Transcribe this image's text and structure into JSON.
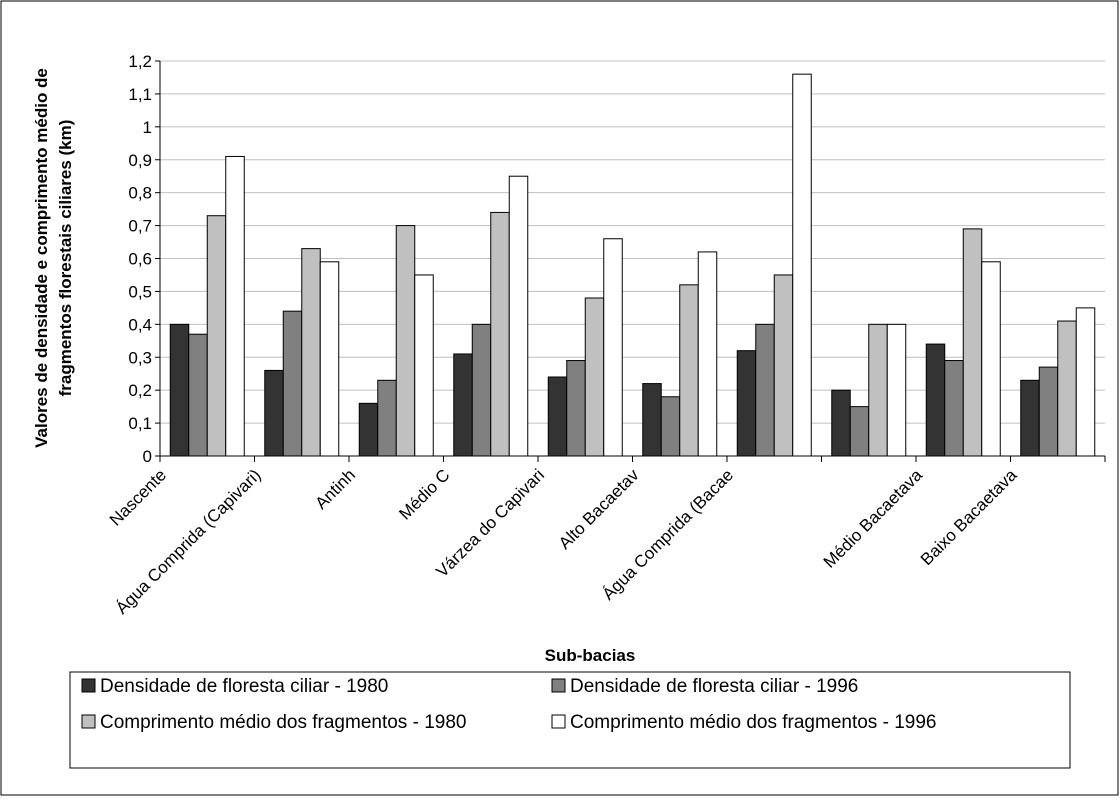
{
  "chart_data": {
    "type": "bar",
    "xlabel": "Sub-bacias",
    "ylabel": [
      "Valores de densidade e comprimento médio de",
      "fragmentos florestais ciliares (km)"
    ],
    "categories": [
      "Nascente",
      "Água Comprida (Capivari)",
      "Antinh",
      "Médio C",
      "Várzea do Capivari",
      "Alto Bacaetav",
      "Água Comprida (Bacae",
      null,
      "Médio Bacaetava",
      "Baixo Bacaetava"
    ],
    "series": [
      {
        "name": "Densidade de floresta ciliar - 1980",
        "color": "#333333",
        "values": [
          0.4,
          0.26,
          0.16,
          0.31,
          0.24,
          0.22,
          0.32,
          0.2,
          0.34,
          0.23
        ]
      },
      {
        "name": "Densidade de floresta ciliar - 1996",
        "color": "#808080",
        "values": [
          0.37,
          0.44,
          0.23,
          0.4,
          0.29,
          0.18,
          0.4,
          0.15,
          0.29,
          0.27
        ]
      },
      {
        "name": "Comprimento médio dos fragmentos - 1980",
        "color": "#c0c0c0",
        "values": [
          0.73,
          0.63,
          0.7,
          0.74,
          0.48,
          0.52,
          0.55,
          0.4,
          0.69,
          0.41
        ]
      },
      {
        "name": "Comprimento médio dos fragmentos - 1996",
        "color": "#ffffff",
        "values": [
          0.91,
          0.59,
          0.55,
          0.85,
          0.66,
          0.62,
          1.16,
          0.4,
          0.59,
          0.45
        ]
      }
    ],
    "ylim": [
      0,
      1.2
    ],
    "yticks": [
      0,
      {
        "value": 0.1,
        "label": "0,1"
      },
      {
        "value": 0.2,
        "label": "0,2"
      },
      {
        "value": 0.3,
        "label": "0,3"
      },
      {
        "value": 0.4,
        "label": "0,4"
      },
      {
        "value": 0.5,
        "label": "0,5"
      },
      {
        "value": 0.6,
        "label": "0,6"
      },
      {
        "value": 0.7,
        "label": "0,7"
      },
      {
        "value": 0.8,
        "label": "0,8"
      },
      {
        "value": 0.9,
        "label": "0,9"
      },
      1,
      {
        "value": 1.1,
        "label": "1,1"
      },
      {
        "value": 1.2,
        "label": "1,2"
      }
    ],
    "grid": true
  }
}
